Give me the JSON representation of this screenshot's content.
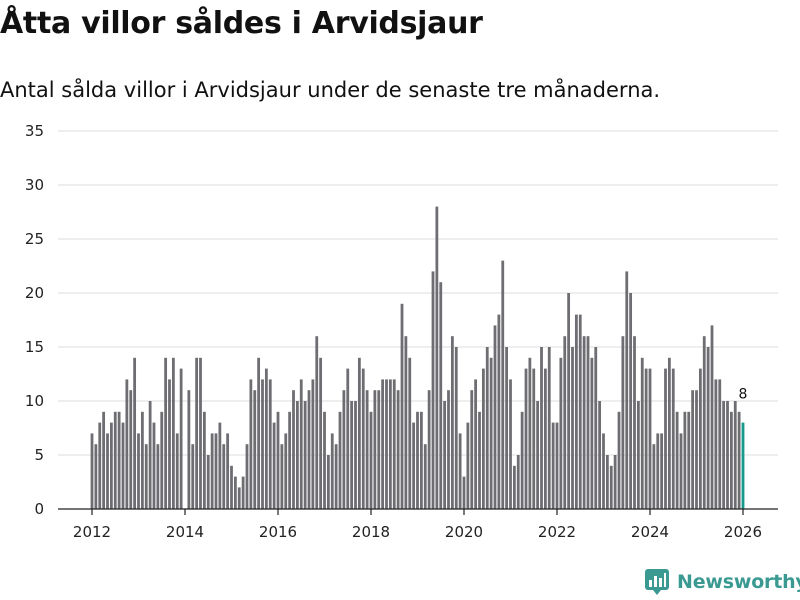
{
  "title": "Åtta villor såldes i Arvidsjaur",
  "subtitle": "Antal sålda villor i Arvidsjaur under de senaste tre månaderna.",
  "brand": {
    "name": "Newsworthy",
    "color": "#3a9a92",
    "icon": "newsworthy-logo-icon"
  },
  "colors": {
    "bar": "#6d6d72",
    "highlight": "#18998e",
    "grid": "#dddddd",
    "axis": "#222222"
  },
  "chart_data": {
    "type": "bar",
    "title": "Åtta villor såldes i Arvidsjaur",
    "xlabel": "",
    "ylabel": "",
    "ylim": [
      0,
      35
    ],
    "yticks": [
      0,
      5,
      10,
      15,
      20,
      25,
      30,
      35
    ],
    "xticks": [
      "2012",
      "2014",
      "2016",
      "2018",
      "2020",
      "2022",
      "2024",
      "2026"
    ],
    "x_start": "2012-01",
    "grid": true,
    "highlight_label": "8",
    "values": [
      7,
      6,
      8,
      9,
      7,
      8,
      9,
      9,
      8,
      12,
      11,
      14,
      7,
      9,
      6,
      10,
      8,
      6,
      9,
      14,
      12,
      14,
      7,
      13,
      0,
      11,
      6,
      14,
      14,
      9,
      5,
      7,
      7,
      8,
      6,
      7,
      4,
      3,
      2,
      3,
      6,
      12,
      11,
      14,
      12,
      13,
      12,
      8,
      9,
      6,
      7,
      9,
      11,
      10,
      12,
      10,
      11,
      12,
      16,
      14,
      9,
      5,
      7,
      6,
      9,
      11,
      13,
      10,
      10,
      14,
      13,
      11,
      9,
      11,
      11,
      12,
      12,
      12,
      12,
      11,
      19,
      16,
      14,
      8,
      9,
      9,
      6,
      11,
      22,
      28,
      21,
      10,
      11,
      16,
      15,
      7,
      3,
      8,
      11,
      12,
      9,
      13,
      15,
      14,
      17,
      18,
      23,
      15,
      12,
      4,
      5,
      9,
      13,
      14,
      13,
      10,
      15,
      13,
      15,
      8,
      8,
      14,
      16,
      20,
      15,
      18,
      18,
      16,
      16,
      14,
      15,
      10,
      7,
      5,
      4,
      5,
      9,
      16,
      22,
      20,
      16,
      10,
      14,
      13,
      13,
      6,
      7,
      7,
      13,
      14,
      13,
      9,
      7,
      9,
      9,
      11,
      11,
      13,
      16,
      15,
      17,
      12,
      12,
      10,
      10,
      9,
      10,
      9,
      8
    ]
  }
}
